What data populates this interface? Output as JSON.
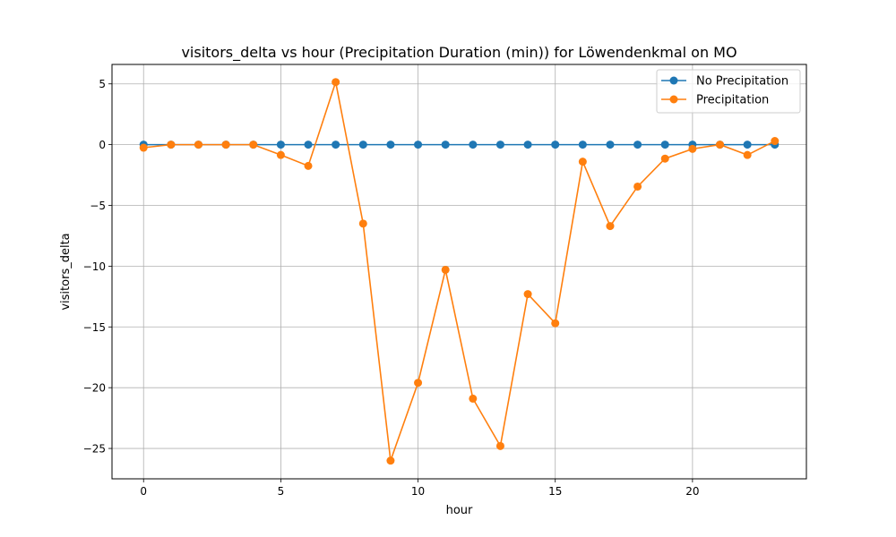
{
  "chart_data": {
    "type": "line",
    "title": "visitors_delta vs hour (Precipitation Duration (min)) for Löwendenkmal on MO",
    "xlabel": "hour",
    "ylabel": "visitors_delta",
    "xlim": [
      -1.15,
      24.15
    ],
    "ylim": [
      -27.5,
      6.6
    ],
    "xticks": [
      0,
      5,
      10,
      15,
      20
    ],
    "yticks": [
      5,
      0,
      -5,
      -10,
      -15,
      -20,
      -25
    ],
    "ytick_labels": [
      "5",
      "0",
      "−5",
      "−10",
      "−15",
      "−20",
      "−25"
    ],
    "grid": true,
    "legend_position": "top-right",
    "x": [
      0,
      1,
      2,
      3,
      4,
      5,
      6,
      7,
      8,
      9,
      10,
      11,
      12,
      13,
      14,
      15,
      16,
      17,
      18,
      19,
      20,
      21,
      22,
      23
    ],
    "series": [
      {
        "name": "No Precipitation",
        "color": "#1f77b4",
        "values": [
          0,
          0,
          0,
          0,
          0,
          0,
          0,
          0,
          0,
          0,
          0,
          0,
          0,
          0,
          0,
          0,
          0,
          0,
          0,
          0,
          0,
          0,
          0,
          0
        ]
      },
      {
        "name": "Precipitation",
        "color": "#ff7f0e",
        "values": [
          -0.25,
          0,
          0,
          0,
          0,
          -0.85,
          -1.75,
          5.15,
          -6.5,
          -26.0,
          -19.6,
          -10.3,
          -20.9,
          -24.8,
          -12.3,
          -14.7,
          -1.4,
          -6.7,
          -3.45,
          -1.15,
          -0.35,
          0,
          -0.85,
          0.3
        ]
      }
    ]
  }
}
